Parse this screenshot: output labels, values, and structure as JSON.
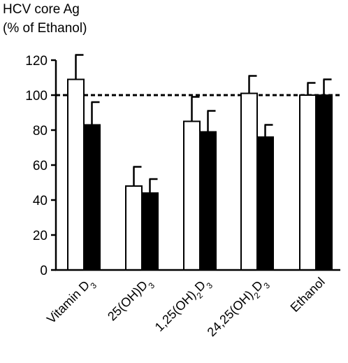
{
  "chart_data": {
    "type": "bar",
    "ylabel_lines": [
      "HCV core Ag",
      "(% of Ethanol)"
    ],
    "categories": [
      {
        "base": "Vitamin D",
        "sub": "3",
        "tail": ""
      },
      {
        "base": "25(OH)D",
        "sub": "3",
        "tail": ""
      },
      {
        "base": "1,25(OH)",
        "sub": "2",
        "tail": "D",
        "sub2": "3"
      },
      {
        "base": "24,25(OH)",
        "sub": "2",
        "tail": "D",
        "sub2": "3"
      },
      {
        "base": "Ethanol",
        "sub": "",
        "tail": ""
      }
    ],
    "series": [
      {
        "fill": "#ffffff",
        "values": [
          109,
          48,
          85,
          101,
          100
        ],
        "errors": [
          14,
          11,
          14,
          10,
          7
        ]
      },
      {
        "fill": "#000000",
        "values": [
          83,
          44,
          79,
          76,
          100
        ],
        "errors": [
          13,
          8,
          12,
          7,
          9
        ]
      }
    ],
    "ylim": [
      0,
      120
    ],
    "yticks": [
      0,
      20,
      40,
      60,
      80,
      100,
      120
    ],
    "reference_line": 100,
    "grid": false
  }
}
